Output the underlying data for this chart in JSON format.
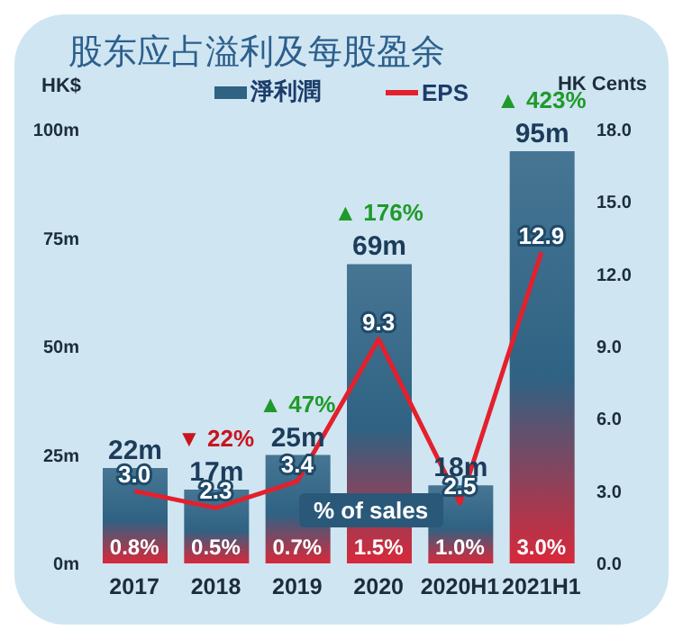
{
  "chart_data": {
    "type": "bar",
    "title": "股东应占溢利及每股盈余",
    "ylabel": "HK$",
    "y2label": "HK Cents",
    "categories": [
      "2017",
      "2018",
      "2019",
      "2020",
      "2020H1",
      "2021H1"
    ],
    "series": [
      {
        "name": "淨利潤",
        "color": "#2f6283",
        "values": [
          22,
          17,
          25,
          69,
          18,
          95
        ],
        "value_labels": [
          "22m",
          "17m",
          "25m",
          "69m",
          "18m",
          "95m"
        ]
      },
      {
        "name": "EPS",
        "type": "line",
        "axis": "y2",
        "color": "#e3202c",
        "values": [
          3.0,
          2.3,
          3.4,
          9.3,
          2.5,
          12.9
        ],
        "value_labels": [
          "3.0",
          "2.3",
          "3.4",
          "9.3",
          "2.5",
          "12.9"
        ]
      }
    ],
    "ylim": [
      0,
      100
    ],
    "yticks": [
      {
        "value": 0,
        "label": "0m"
      },
      {
        "value": 25,
        "label": "25m"
      },
      {
        "value": 50,
        "label": "50m"
      },
      {
        "value": 75,
        "label": "75m"
      },
      {
        "value": 100,
        "label": "100m"
      }
    ],
    "y2lim": [
      0,
      18
    ],
    "y2ticks": [
      {
        "value": 0,
        "label": "0.0"
      },
      {
        "value": 3,
        "label": "3.0"
      },
      {
        "value": 6,
        "label": "6.0"
      },
      {
        "value": 9,
        "label": "9.0"
      },
      {
        "value": 12,
        "label": "12.0"
      },
      {
        "value": 15,
        "label": "15.0"
      },
      {
        "value": 18,
        "label": "18.0"
      }
    ],
    "annotations": [
      {
        "text": "▼ 22%",
        "x": "2018",
        "y": 17
      },
      {
        "text": "▲ 47%",
        "x": "2019",
        "y": 25
      },
      {
        "text": "▲ 176%",
        "x": "2020",
        "y": 69
      },
      {
        "text": "▲ 423%",
        "x": "2021H1",
        "y": 95
      },
      "% of sales",
      "0.8%",
      "0.5%",
      "0.7%",
      "1.5%",
      "1.0%",
      "3.0%"
    ],
    "legend": "top",
    "grid": false
  }
}
